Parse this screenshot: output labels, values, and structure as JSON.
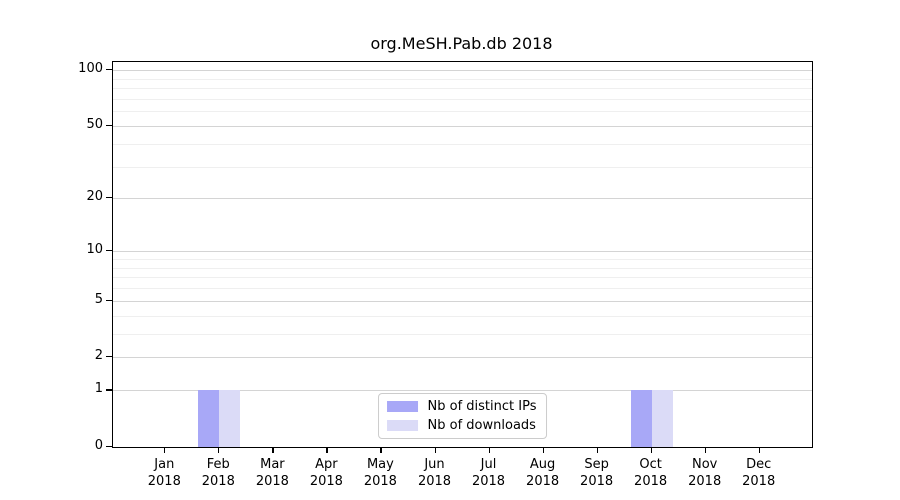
{
  "chart_data": {
    "type": "bar",
    "title": "org.MeSH.Pab.db 2018",
    "categories": [
      "Jan 2018",
      "Feb 2018",
      "Mar 2018",
      "Apr 2018",
      "May 2018",
      "Jun 2018",
      "Jul 2018",
      "Aug 2018",
      "Sep 2018",
      "Oct 2018",
      "Nov 2018",
      "Dec 2018"
    ],
    "series": [
      {
        "name": "Nb of distinct IPs",
        "color": "#a8a8f7",
        "values": [
          0,
          1,
          0,
          0,
          0,
          0,
          0,
          0,
          0,
          1,
          0,
          0
        ]
      },
      {
        "name": "Nb of downloads",
        "color": "#dbdbf7",
        "values": [
          0,
          1,
          0,
          0,
          0,
          0,
          0,
          0,
          0,
          1,
          0,
          0
        ]
      }
    ],
    "xlabel": "",
    "ylabel": "",
    "y_axis": {
      "scale": "log1p",
      "ticks": [
        0,
        1,
        2,
        5,
        10,
        20,
        50,
        100
      ],
      "minor_ticks": [
        3,
        4,
        6,
        7,
        8,
        9,
        30,
        40,
        60,
        70,
        80,
        90
      ],
      "max": 100
    },
    "grid": true,
    "legend_position": "bottom-center"
  },
  "colors": {
    "bar_distinct_ips": "#a8a8f7",
    "bar_downloads": "#dbdbf7",
    "major_grid": "#d4d4d4",
    "minor_grid": "#efefef",
    "axis": "#000000",
    "legend_border": "#cccccc",
    "background": "#ffffff"
  }
}
